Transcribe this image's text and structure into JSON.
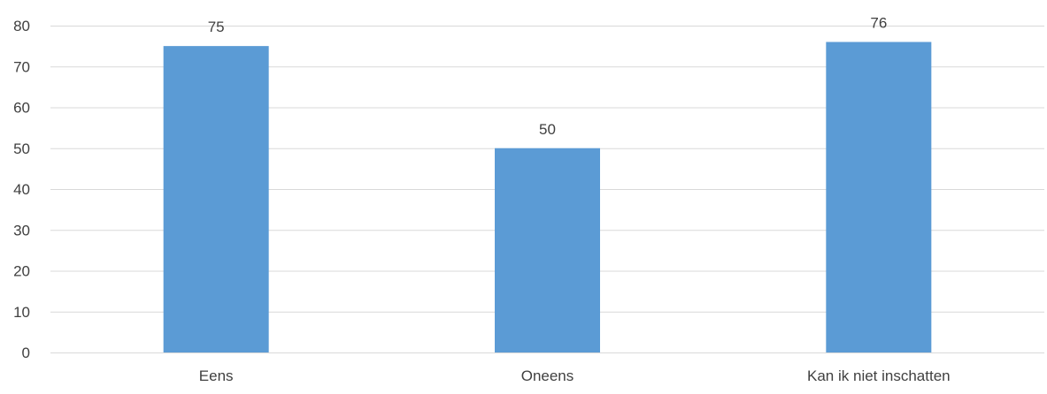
{
  "chart_data": {
    "type": "bar",
    "categories": [
      "Eens",
      "Oneens",
      "Kan ik niet inschatten"
    ],
    "values": [
      75,
      50,
      76
    ],
    "data_labels": [
      "75",
      "50",
      "76"
    ],
    "title": "",
    "xlabel": "",
    "ylabel": "",
    "ylim": [
      0,
      80
    ],
    "yticks": [
      0,
      10,
      20,
      30,
      40,
      50,
      60,
      70,
      80
    ],
    "ytick_labels": [
      "0",
      "10",
      "20",
      "30",
      "40",
      "50",
      "60",
      "70",
      "80"
    ],
    "grid": true,
    "legend": "none",
    "colors": {
      "bar": "#5b9bd5",
      "grid": "#d9d9d9",
      "axis": "#d9d9d9",
      "text": "#404040"
    }
  }
}
